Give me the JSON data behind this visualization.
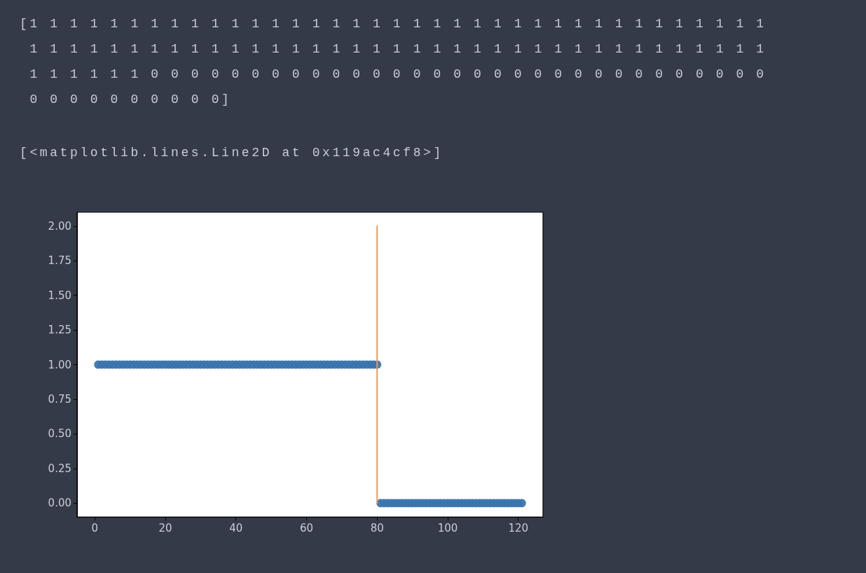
{
  "chart_data": {
    "type": "scatter",
    "annotations": [
      "[1 1 1 1 1 1 1 1 1 1 1 1 1 1 1 1 1 1 1 1 1 1 1 1 1 1 1 1 1 1 1 1 1 1 1 1 1\n 1 1 1 1 1 1 1 1 1 1 1 1 1 1 1 1 1 1 1 1 1 1 1 1 1 1 1 1 1 1 1 1 1 1 1 1 1\n 1 1 1 1 1 1 0 0 0 0 0 0 0 0 0 0 0 0 0 0 0 0 0 0 0 0 0 0 0 0 0 0 0 0 0 0 0\n 0 0 0 0 0 0 0 0 0 0]",
      "[<matplotlib.lines.Line2D at 0x119ac4cf8>]"
    ],
    "marker": "circle",
    "xlim": [
      -5,
      127
    ],
    "xticks": [
      0,
      20,
      40,
      60,
      80,
      100,
      120
    ],
    "ylim": [
      -0.1,
      2.1
    ],
    "yticks": [
      {
        "value": 0,
        "label": "0.00"
      },
      {
        "value": 0.25,
        "label": "0.25"
      },
      {
        "value": 0.5,
        "label": "0.50"
      },
      {
        "value": 0.75,
        "label": "0.75"
      },
      {
        "value": 1,
        "label": "1.00"
      },
      {
        "value": 1.25,
        "label": "1.25"
      },
      {
        "value": 1.5,
        "label": "1.50"
      },
      {
        "value": 1.75,
        "label": "1.75"
      },
      {
        "value": 2,
        "label": "2.00"
      }
    ],
    "series": [
      {
        "color": "#3b75af",
        "x": [
          1,
          2,
          3,
          4,
          5,
          6,
          7,
          8,
          9,
          10,
          11,
          12,
          13,
          14,
          15,
          16,
          17,
          18,
          19,
          20,
          21,
          22,
          23,
          24,
          25,
          26,
          27,
          28,
          29,
          30,
          31,
          32,
          33,
          34,
          35,
          36,
          37,
          38,
          39,
          40,
          41,
          42,
          43,
          44,
          45,
          46,
          47,
          48,
          49,
          50,
          51,
          52,
          53,
          54,
          55,
          56,
          57,
          58,
          59,
          60,
          61,
          62,
          63,
          64,
          65,
          66,
          67,
          68,
          69,
          70,
          71,
          72,
          73,
          74,
          75,
          76,
          77,
          78,
          79,
          80,
          81,
          82,
          83,
          84,
          85,
          86,
          87,
          88,
          89,
          90,
          91,
          92,
          93,
          94,
          95,
          96,
          97,
          98,
          99,
          100,
          101,
          102,
          103,
          104,
          105,
          106,
          107,
          108,
          109,
          110,
          111,
          112,
          113,
          114,
          115,
          116,
          117,
          118,
          119,
          120,
          121
        ],
        "values": [
          1,
          1,
          1,
          1,
          1,
          1,
          1,
          1,
          1,
          1,
          1,
          1,
          1,
          1,
          1,
          1,
          1,
          1,
          1,
          1,
          1,
          1,
          1,
          1,
          1,
          1,
          1,
          1,
          1,
          1,
          1,
          1,
          1,
          1,
          1,
          1,
          1,
          1,
          1,
          1,
          1,
          1,
          1,
          1,
          1,
          1,
          1,
          1,
          1,
          1,
          1,
          1,
          1,
          1,
          1,
          1,
          1,
          1,
          1,
          1,
          1,
          1,
          1,
          1,
          1,
          1,
          1,
          1,
          1,
          1,
          1,
          1,
          1,
          1,
          1,
          1,
          1,
          1,
          1,
          1,
          0,
          0,
          0,
          0,
          0,
          0,
          0,
          0,
          0,
          0,
          0,
          0,
          0,
          0,
          0,
          0,
          0,
          0,
          0,
          0,
          0,
          0,
          0,
          0,
          0,
          0,
          0,
          0,
          0,
          0,
          0,
          0,
          0,
          0,
          0,
          0,
          0,
          0,
          0,
          0,
          0
        ]
      },
      {
        "type": "line",
        "color": "#ee9a55",
        "marker": "none",
        "line_style": "solid",
        "x": [
          80,
          80
        ],
        "values": [
          0,
          2
        ]
      }
    ]
  }
}
